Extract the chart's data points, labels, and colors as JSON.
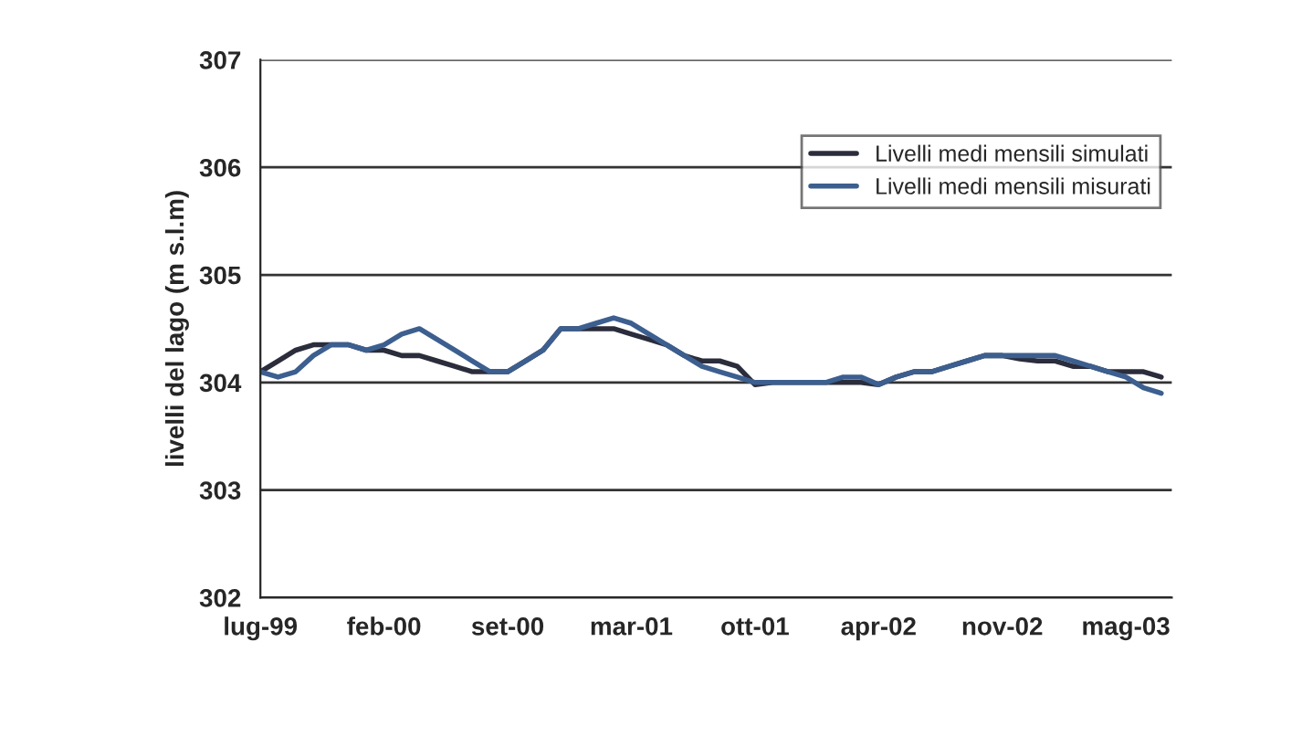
{
  "chart_data": {
    "type": "line",
    "ylabel": "livelli del lago (m s.l.m)",
    "categories": [
      "lug-99",
      null,
      null,
      null,
      null,
      null,
      null,
      "feb-00",
      null,
      null,
      null,
      null,
      null,
      null,
      "set-00",
      null,
      null,
      null,
      null,
      null,
      null,
      "mar-01",
      null,
      null,
      null,
      null,
      null,
      null,
      "ott-01",
      null,
      null,
      null,
      null,
      null,
      null,
      "apr-02",
      null,
      null,
      null,
      null,
      null,
      null,
      "nov-02",
      null,
      null,
      null,
      null,
      null,
      null,
      "mag-03",
      null,
      null
    ],
    "series": [
      {
        "name": "Livelli medi mensili simulati",
        "color": "#2b2d3c",
        "values": [
          304.1,
          304.2,
          304.3,
          304.35,
          304.35,
          304.35,
          304.3,
          304.3,
          304.25,
          304.25,
          304.2,
          304.15,
          304.1,
          304.1,
          304.1,
          304.2,
          304.3,
          304.5,
          304.5,
          304.5,
          304.5,
          304.45,
          304.4,
          304.35,
          304.25,
          304.2,
          304.2,
          304.15,
          303.98,
          304.0,
          304.0,
          304.0,
          304.0,
          304.0,
          304.0,
          303.98,
          304.05,
          304.1,
          304.1,
          304.15,
          304.2,
          304.25,
          304.25,
          304.22,
          304.2,
          304.2,
          304.15,
          304.15,
          304.1,
          304.1,
          304.1,
          304.05
        ]
      },
      {
        "name": "Livelli medi mensili misurati",
        "color": "#3c5f8f",
        "values": [
          304.1,
          304.05,
          304.1,
          304.25,
          304.35,
          304.35,
          304.3,
          304.35,
          304.45,
          304.5,
          304.4,
          304.3,
          304.2,
          304.1,
          304.1,
          304.2,
          304.3,
          304.5,
          304.5,
          304.55,
          304.6,
          304.55,
          304.45,
          304.35,
          304.25,
          304.15,
          304.1,
          304.05,
          304.0,
          304.0,
          304.0,
          304.0,
          304.0,
          304.05,
          304.05,
          303.98,
          304.05,
          304.1,
          304.1,
          304.15,
          304.2,
          304.25,
          304.25,
          304.25,
          304.25,
          304.25,
          304.2,
          304.15,
          304.1,
          304.05,
          303.95,
          303.9
        ]
      }
    ],
    "ylim": [
      302,
      307
    ],
    "yticks": [
      302,
      303,
      304,
      305,
      306,
      307
    ],
    "grid": "y",
    "legend": "top right",
    "marker": "none",
    "line_style": "solid"
  }
}
